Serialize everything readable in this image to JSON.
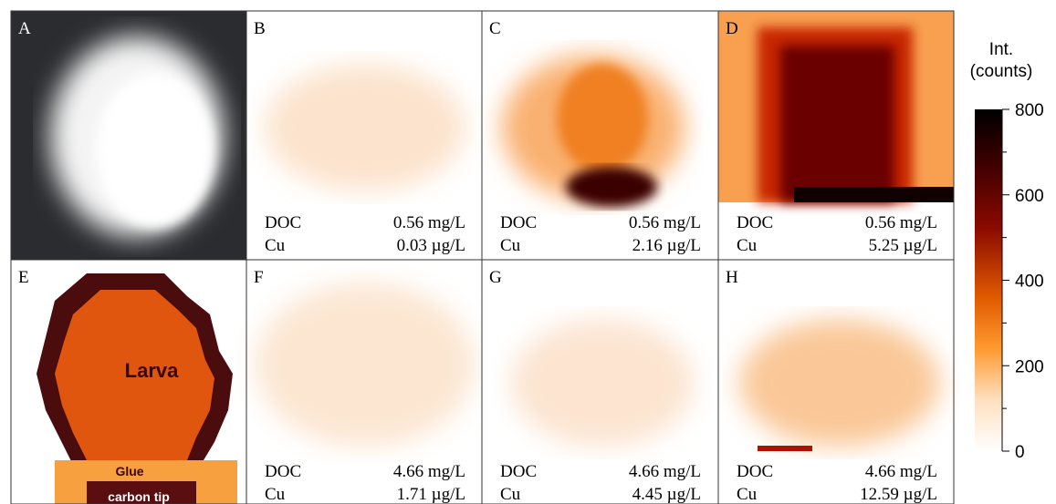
{
  "panels": [
    {
      "letter": "A"
    },
    {
      "letter": "B",
      "doc_label": "DOC",
      "doc": "0.56 mg/L",
      "cu_label": "Cu",
      "cu": "0.03 µg/L"
    },
    {
      "letter": "C",
      "doc_label": "DOC",
      "doc": "0.56 mg/L",
      "cu_label": "Cu",
      "cu": "2.16 µg/L"
    },
    {
      "letter": "D",
      "doc_label": "DOC",
      "doc": "0.56 mg/L",
      "cu_label": "Cu",
      "cu": "5.25 µg/L"
    },
    {
      "letter": "E"
    },
    {
      "letter": "F",
      "doc_label": "DOC",
      "doc": "4.66 mg/L",
      "cu_label": "Cu",
      "cu": "1.71 µg/L"
    },
    {
      "letter": "G",
      "doc_label": "DOC",
      "doc": "4.66 mg/L",
      "cu_label": "Cu",
      "cu": "4.45 µg/L"
    },
    {
      "letter": "H",
      "doc_label": "DOC",
      "doc": "4.66 mg/L",
      "cu_label": "Cu",
      "cu": "12.59 µg/L"
    }
  ],
  "diagram": {
    "larva": "Larva",
    "glue": "Glue",
    "tip": "carbon tip"
  },
  "colorbar": {
    "title": [
      "Int.",
      "(counts)"
    ],
    "lim": [
      0,
      800
    ],
    "ticks": [
      0,
      200,
      400,
      600,
      800
    ]
  }
}
